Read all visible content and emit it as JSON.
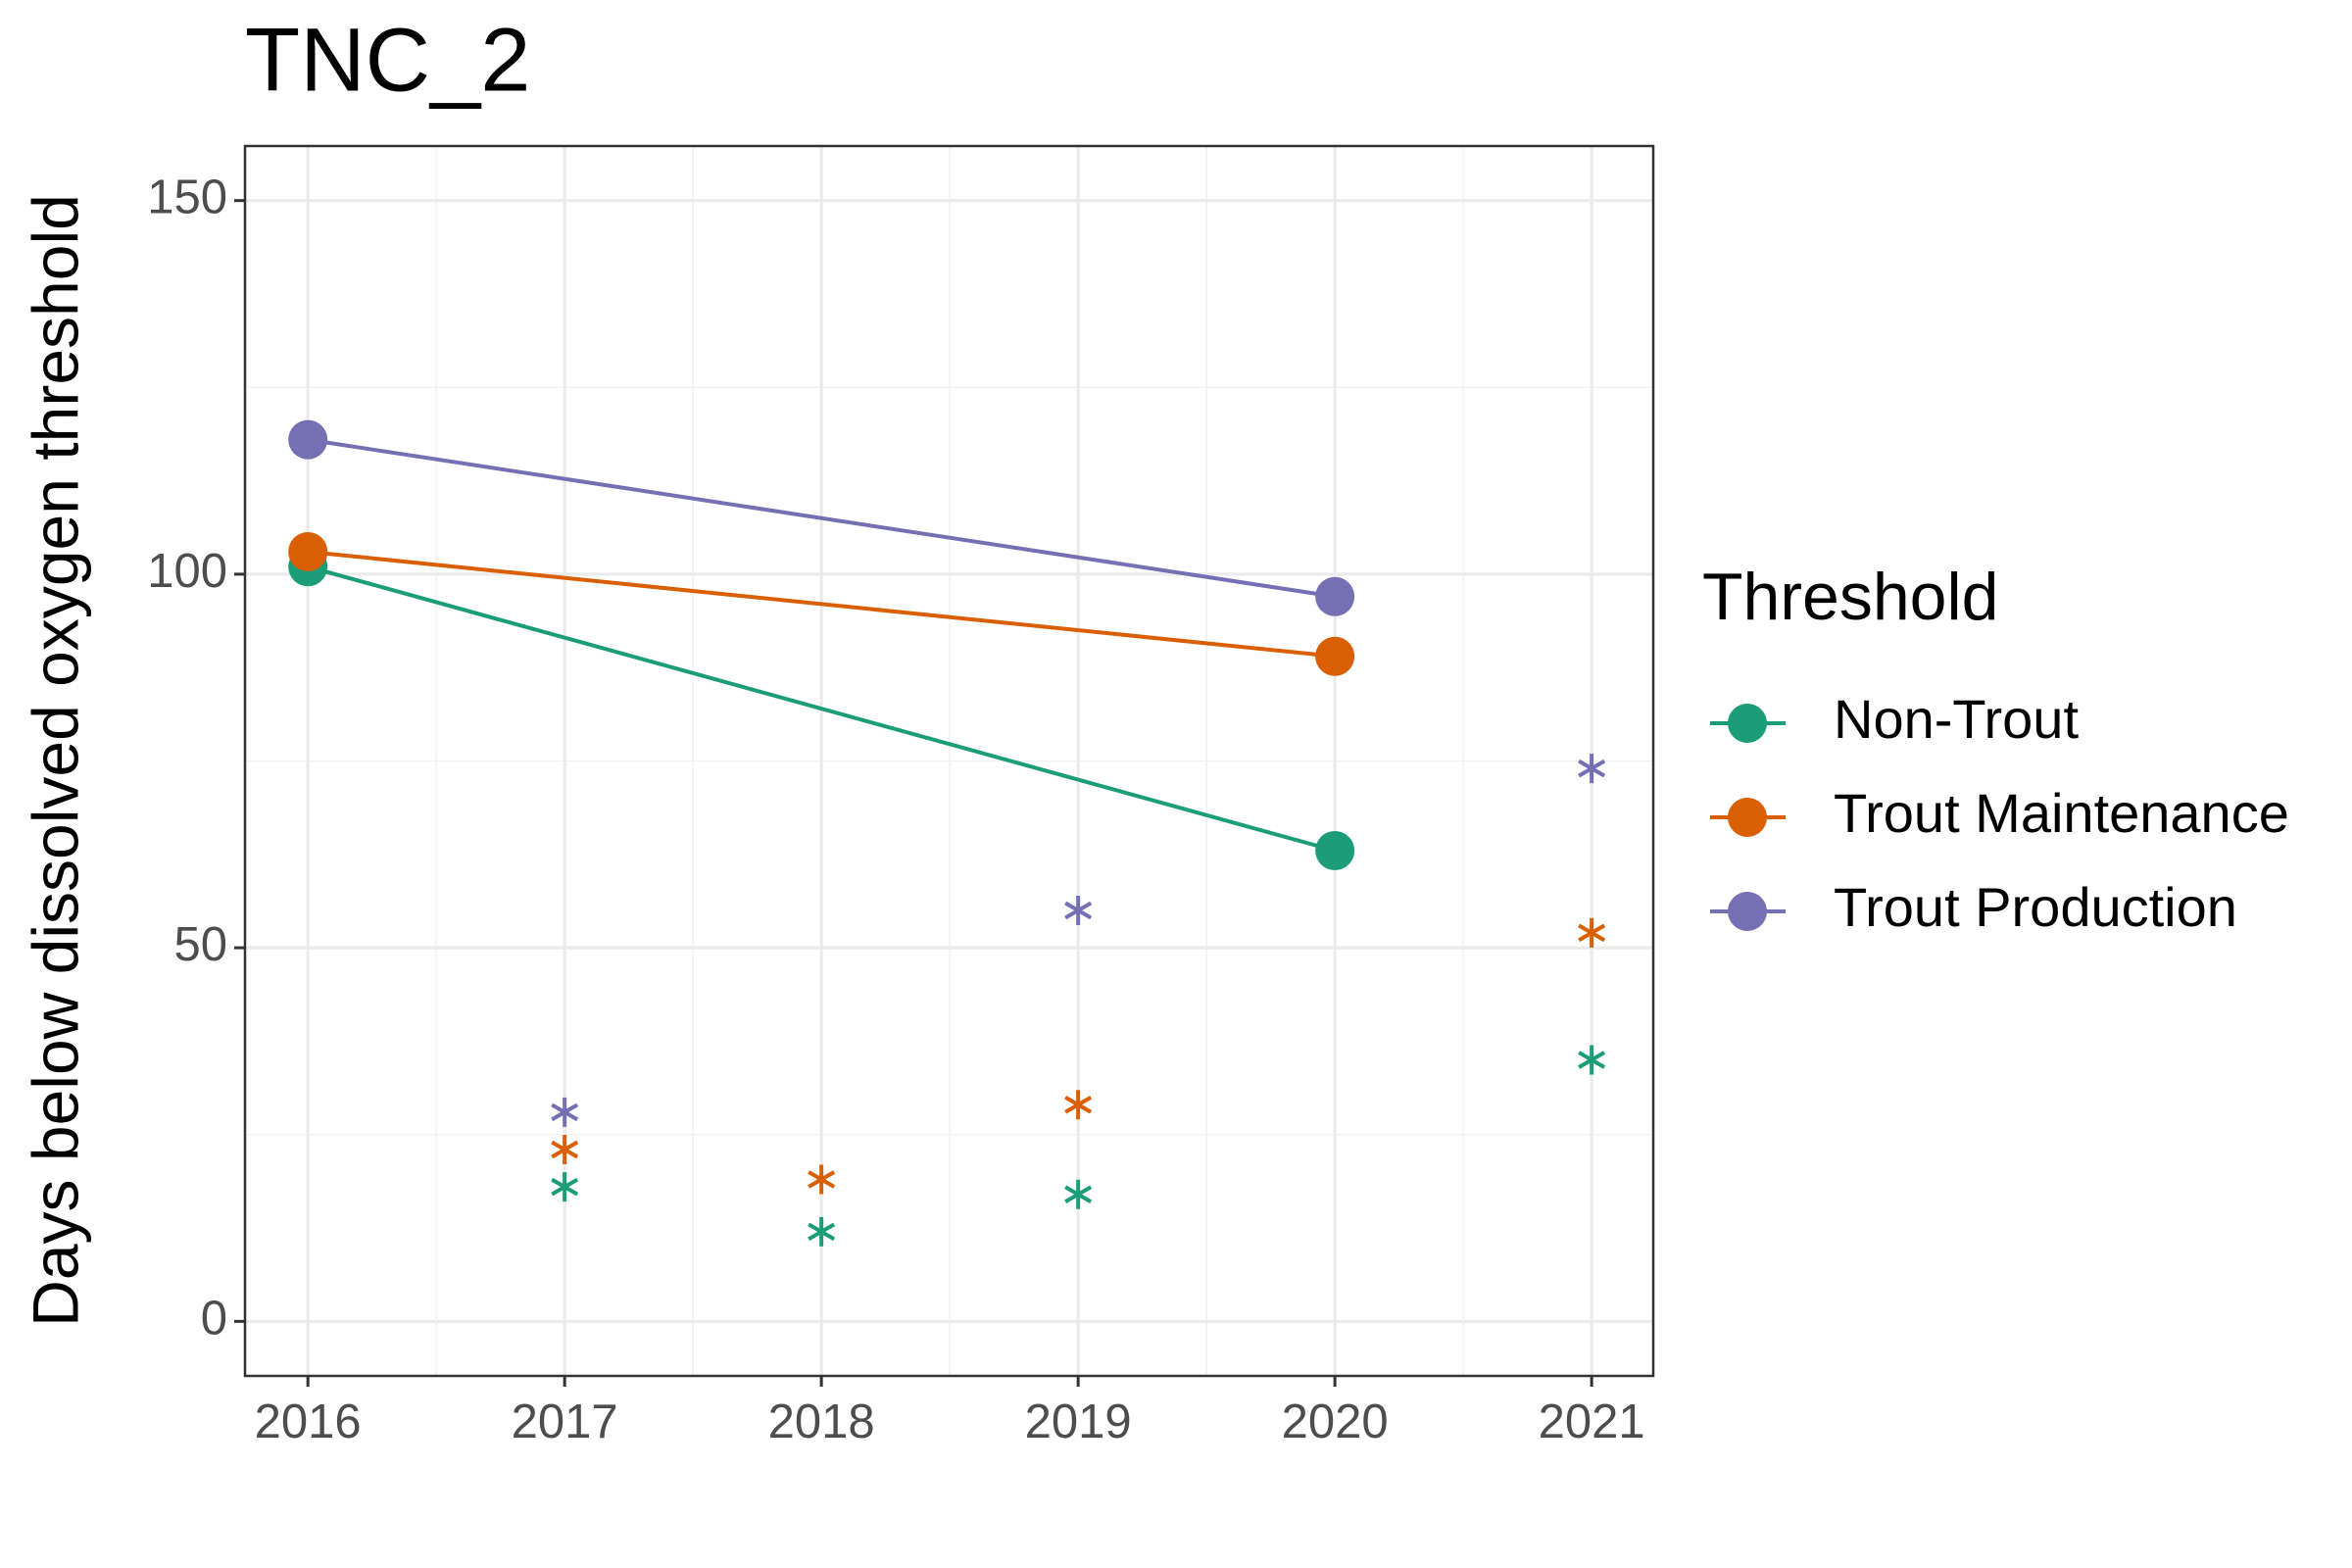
{
  "chart_data": {
    "type": "line",
    "title": "TNC_2",
    "y_label": "Days below dissolved oxygen threshold",
    "legend_title": "Threshold",
    "xlim": [
      2015.755,
      2021.24
    ],
    "xticks": [
      2016,
      2017,
      2018,
      2019,
      2020,
      2021
    ],
    "ylim": [
      -7.3,
      157.3
    ],
    "yticks": [
      0,
      50,
      100,
      150
    ],
    "grid": true,
    "legend": "right",
    "series": [
      {
        "name": "Non-Trout",
        "color": "#1b9e77",
        "x": [
          2016,
          2020
        ],
        "values": [
          101,
          63
        ],
        "partial_x": [
          2017,
          2018,
          2019,
          2021
        ],
        "partial_values": [
          18,
          12,
          17,
          35
        ]
      },
      {
        "name": "Trout Maintenance",
        "color": "#d95f02",
        "x": [
          2016,
          2020
        ],
        "values": [
          103,
          89
        ],
        "partial_x": [
          2017,
          2018,
          2019,
          2021
        ],
        "partial_values": [
          23,
          19,
          29,
          52
        ]
      },
      {
        "name": "Trout Production",
        "color": "#7570b3",
        "x": [
          2016,
          2020
        ],
        "values": [
          118,
          97
        ],
        "partial_x": [
          2017,
          2018,
          2019,
          2021
        ],
        "partial_values": [
          28,
          null,
          55,
          74
        ]
      }
    ]
  }
}
